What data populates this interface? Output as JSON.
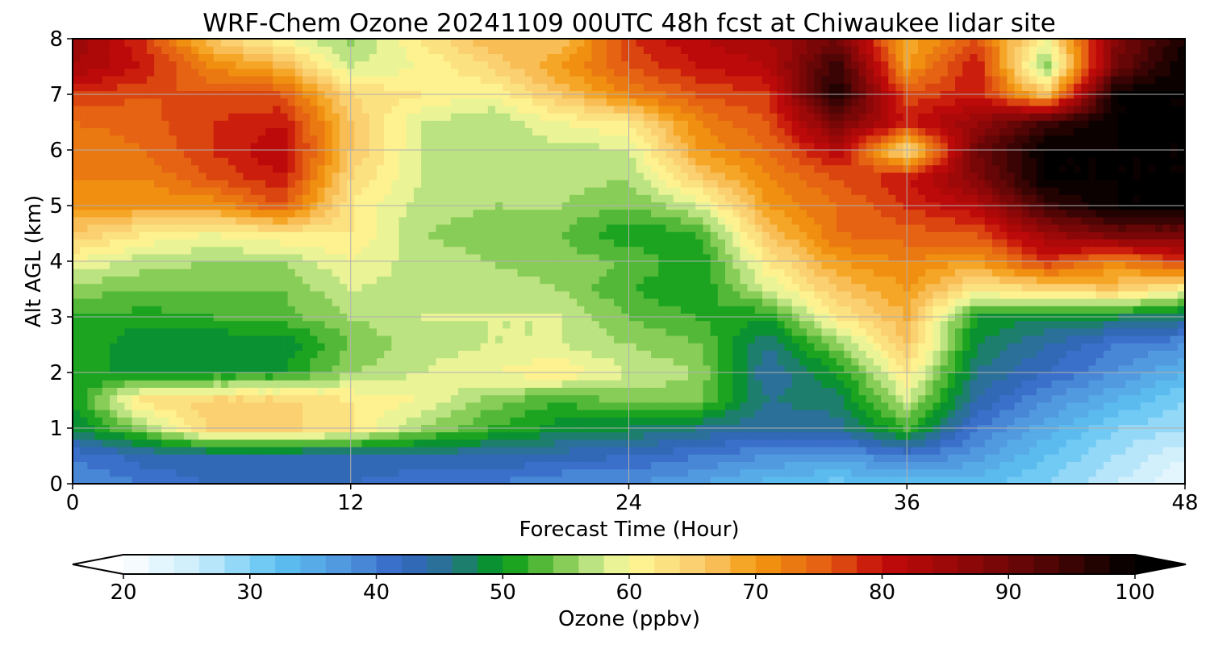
{
  "chart_data": {
    "type": "heatmap",
    "title": "WRF-Chem Ozone  20241109 00UTC 48h fcst at Chiwaukee lidar site",
    "xlabel": "Forecast Time (Hour)",
    "ylabel": "Alt AGL (km)",
    "xlim": [
      0,
      48
    ],
    "ylim": [
      0,
      8
    ],
    "x_ticks": [
      0,
      12,
      24,
      36,
      48
    ],
    "y_ticks": [
      0,
      1,
      2,
      3,
      4,
      5,
      6,
      7,
      8
    ],
    "grid": true,
    "colorbar": {
      "label": "Ozone  (ppbv)",
      "min": 20,
      "max": 100,
      "step": 2,
      "ticks": [
        20,
        30,
        40,
        50,
        60,
        70,
        80,
        90,
        100
      ],
      "extend": "both",
      "color_stops": [
        {
          "value": 20,
          "color": "#ffffff"
        },
        {
          "value": 26,
          "color": "#c9ecfb"
        },
        {
          "value": 32,
          "color": "#5fc3f2"
        },
        {
          "value": 38,
          "color": "#4f92dc"
        },
        {
          "value": 42,
          "color": "#3465c4"
        },
        {
          "value": 46,
          "color": "#26748a"
        },
        {
          "value": 50,
          "color": "#009a14"
        },
        {
          "value": 54,
          "color": "#6ec244"
        },
        {
          "value": 58,
          "color": "#d6ee95"
        },
        {
          "value": 60,
          "color": "#fefa96"
        },
        {
          "value": 66,
          "color": "#f9c86a"
        },
        {
          "value": 70,
          "color": "#f39a10"
        },
        {
          "value": 76,
          "color": "#e25812"
        },
        {
          "value": 80,
          "color": "#c40a0a"
        },
        {
          "value": 86,
          "color": "#950808"
        },
        {
          "value": 92,
          "color": "#5c0606"
        },
        {
          "value": 100,
          "color": "#000000"
        }
      ]
    },
    "x": [
      0,
      3,
      6,
      9,
      12,
      15,
      18,
      21,
      24,
      27,
      30,
      33,
      36,
      39,
      42,
      45,
      48
    ],
    "y": [
      0,
      0.5,
      1,
      1.5,
      2,
      2.5,
      3,
      3.5,
      4,
      4.5,
      5,
      5.5,
      6,
      6.5,
      7,
      7.5,
      8
    ],
    "z": [
      [
        38,
        40,
        42,
        42,
        42,
        40,
        40,
        38,
        38,
        36,
        33,
        31,
        33,
        33,
        30,
        26,
        22
      ],
      [
        40,
        43,
        44,
        44,
        44,
        44,
        44,
        43,
        42,
        40,
        38,
        37,
        40,
        37,
        32,
        28,
        24
      ],
      [
        48,
        55,
        65,
        65,
        62,
        56,
        52,
        49,
        48,
        46,
        44,
        45,
        52,
        40,
        35,
        30,
        28
      ],
      [
        50,
        63,
        65,
        65,
        62,
        60,
        55,
        52,
        55,
        54,
        46,
        47,
        58,
        44,
        38,
        34,
        30
      ],
      [
        50,
        50,
        50,
        50,
        56,
        58,
        60,
        62,
        58,
        56,
        44,
        50,
        62,
        46,
        42,
        38,
        34
      ],
      [
        52,
        48,
        48,
        48,
        54,
        57,
        58,
        58,
        56,
        54,
        46,
        55,
        66,
        48,
        44,
        40,
        38
      ],
      [
        52,
        51,
        52,
        53,
        56,
        58,
        58,
        58,
        54,
        52,
        50,
        62,
        68,
        50,
        48,
        48,
        46
      ],
      [
        55,
        54,
        54,
        54,
        58,
        57,
        57,
        56,
        52,
        50,
        58,
        66,
        70,
        62,
        64,
        66,
        60
      ],
      [
        60,
        57,
        56,
        56,
        60,
        57,
        56,
        55,
        54,
        50,
        62,
        70,
        72,
        70,
        78,
        72,
        78
      ],
      [
        66,
        62,
        60,
        62,
        62,
        56,
        55,
        54,
        50,
        52,
        66,
        74,
        75,
        76,
        85,
        90,
        90
      ],
      [
        70,
        70,
        70,
        76,
        62,
        57,
        56,
        56,
        54,
        58,
        70,
        74,
        78,
        82,
        95,
        100,
        100
      ],
      [
        72,
        72,
        76,
        80,
        64,
        58,
        57,
        57,
        56,
        65,
        72,
        76,
        80,
        88,
        100,
        100,
        100
      ],
      [
        72,
        74,
        78,
        82,
        66,
        58,
        57,
        57,
        58,
        70,
        74,
        82,
        62,
        90,
        100,
        100,
        100
      ],
      [
        74,
        75,
        78,
        80,
        66,
        58,
        56,
        60,
        62,
        72,
        76,
        90,
        80,
        86,
        95,
        100,
        100
      ],
      [
        78,
        76,
        76,
        76,
        64,
        62,
        60,
        66,
        72,
        76,
        78,
        98,
        76,
        80,
        66,
        100,
        100
      ],
      [
        84,
        80,
        72,
        68,
        58,
        60,
        64,
        70,
        76,
        80,
        82,
        96,
        70,
        80,
        54,
        90,
        100
      ],
      [
        86,
        78,
        66,
        60,
        55,
        62,
        68,
        66,
        78,
        82,
        84,
        90,
        68,
        76,
        60,
        88,
        98
      ]
    ]
  }
}
